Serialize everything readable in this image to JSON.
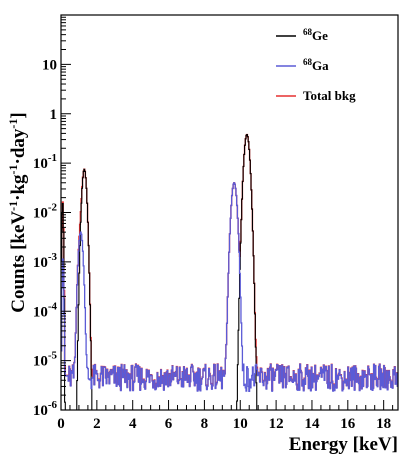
{
  "chart_data": {
    "type": "line",
    "xlabel": "Energy [keV]",
    "ylabel": {
      "prefix": "Counts [keV",
      "exp1": "-1",
      "mid1": "·kg",
      "exp2": "-1",
      "mid2": "·day",
      "exp3": "-1",
      "suffix": "]"
    },
    "xlim": [
      0,
      18.8
    ],
    "ylim": [
      1e-06,
      100
    ],
    "y_scale": "log",
    "grid": false,
    "legend_position": "top-right",
    "x_ticks": [
      "0",
      "2",
      "4",
      "6",
      "8",
      "10",
      "12",
      "14",
      "16",
      "18"
    ],
    "y_ticks": [
      {
        "base": "10",
        "exp": "-6"
      },
      {
        "base": "10",
        "exp": "-5"
      },
      {
        "base": "10",
        "exp": "-4"
      },
      {
        "base": "10",
        "exp": "-3"
      },
      {
        "base": "10",
        "exp": "-2"
      },
      {
        "base": "10",
        "exp": "-1"
      },
      {
        "base": "1",
        "exp": ""
      },
      {
        "base": "10",
        "exp": ""
      }
    ],
    "series": [
      {
        "name": {
          "sup": "68",
          "base": "Ge"
        },
        "color": "#000000",
        "lines": [
          {
            "center": 0.09,
            "sigma": 0.03,
            "amplitude": 0.016
          },
          {
            "center": 1.3,
            "sigma": 0.09,
            "amplitude": 0.075
          },
          {
            "center": 10.37,
            "sigma": 0.11,
            "amplitude": 0.38
          }
        ],
        "continuum": 1e-07
      },
      {
        "name": {
          "sup": "68",
          "base": "Ga"
        },
        "color": "#5b5bd6",
        "lines": [
          {
            "center": 0.11,
            "sigma": 0.03,
            "amplitude": 0.0012
          },
          {
            "center": 1.1,
            "sigma": 0.09,
            "amplitude": 0.004
          },
          {
            "center": 9.66,
            "sigma": 0.11,
            "amplitude": 0.04
          }
        ],
        "continuum": 4.5e-06
      },
      {
        "name": {
          "sup": "",
          "base": "Total bkg"
        },
        "color": "#e53030",
        "components": "sum"
      }
    ]
  }
}
